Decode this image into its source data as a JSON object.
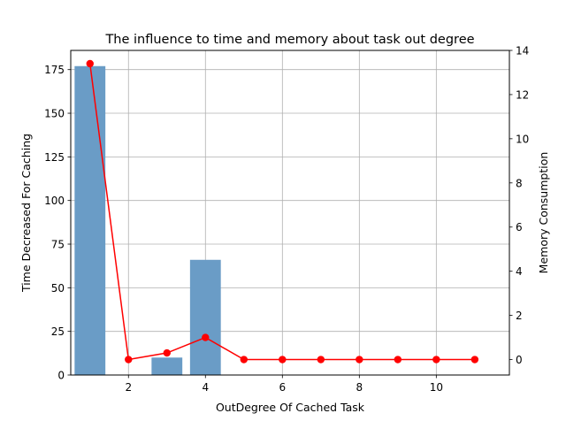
{
  "chart_data": {
    "type": "bar",
    "title": "The influence to time and memory about task out degree",
    "xlabel": "OutDegree Of Cached Task",
    "ylabel": "Time Decreased For Caching",
    "y2label": "Memory Consumption",
    "xlim": [
      0.5,
      11.9
    ],
    "ylim": [
      0,
      186
    ],
    "y2lim": [
      -0.7,
      14
    ],
    "x_ticks": [
      2,
      4,
      6,
      8,
      10
    ],
    "y_ticks": [
      0,
      25,
      50,
      75,
      100,
      125,
      150,
      175
    ],
    "y2_ticks": [
      0,
      2,
      4,
      6,
      8,
      10,
      12,
      14
    ],
    "grid": true,
    "bars": {
      "color": "#6a9cc6",
      "width": 0.8,
      "x": [
        1,
        2,
        3,
        4,
        5,
        6,
        7,
        8,
        9,
        10,
        11
      ],
      "values": [
        177,
        0,
        10,
        66,
        0,
        0,
        0,
        0,
        0,
        0,
        0
      ]
    },
    "line": {
      "color": "#ff0000",
      "axis": "right",
      "x": [
        1,
        2,
        3,
        4,
        5,
        6,
        7,
        8,
        9,
        10,
        11
      ],
      "values": [
        13.4,
        0,
        0.3,
        1.0,
        0,
        0,
        0,
        0,
        0,
        0,
        0
      ]
    }
  }
}
